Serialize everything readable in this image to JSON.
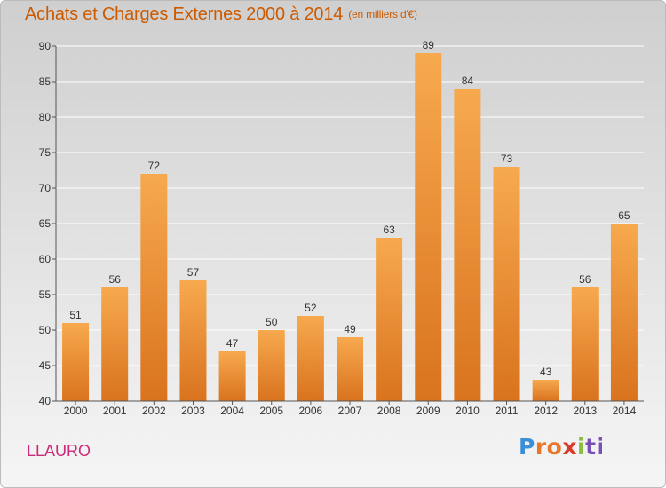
{
  "title": "Achats et Charges Externes 2000 à 2014",
  "subtitle": "(en milliers d'€)",
  "commune": "LLAURO",
  "logo": {
    "parts": [
      "P",
      "ro",
      "x",
      "i",
      "ti"
    ],
    "colors": [
      "#3a8fd6",
      "#e8772a",
      "#d93a2b",
      "#8cbf3f",
      "#7a4fb5"
    ]
  },
  "colors": {
    "bar_light": "#f7a94e",
    "bar_dark": "#d9731e",
    "title": "#cc5a00",
    "commune": "#cc2a7a",
    "grid": "#ffffff",
    "axis": "#555555"
  },
  "chart_data": {
    "type": "bar",
    "categories": [
      "2000",
      "2001",
      "2002",
      "2003",
      "2004",
      "2005",
      "2006",
      "2007",
      "2008",
      "2009",
      "2010",
      "2011",
      "2012",
      "2013",
      "2014"
    ],
    "values": [
      51,
      56,
      72,
      57,
      47,
      50,
      52,
      49,
      63,
      89,
      84,
      73,
      43,
      56,
      65
    ],
    "data_labels": [
      "51",
      "56",
      "72",
      "57",
      "47",
      "50",
      "52",
      "49",
      "63",
      "89",
      "84",
      "73",
      "43",
      "56",
      "65"
    ],
    "ylim": [
      40,
      90
    ],
    "yticks": [
      40,
      45,
      50,
      55,
      60,
      65,
      70,
      75,
      80,
      85,
      90
    ],
    "grid": true,
    "legend": "none"
  }
}
